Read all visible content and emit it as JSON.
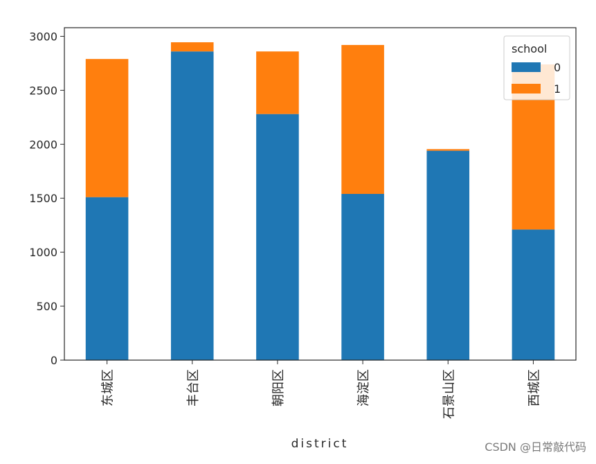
{
  "colors": {
    "series_0": "#1f77b4",
    "series_1": "#ff7f0e",
    "axis": "#262626",
    "background": "#ffffff",
    "watermark": "#7a7a7a"
  },
  "watermark": {
    "text": "CSDN @日常敲代码"
  },
  "chart_data": {
    "type": "bar",
    "stacked": true,
    "xlabel": "district",
    "ylabel": "",
    "categories": [
      "东城区",
      "丰台区",
      "朝阳区",
      "海淀区",
      "石景山区",
      "西城区"
    ],
    "series": [
      {
        "name": "0",
        "values": [
          1510,
          2860,
          2280,
          1540,
          1940,
          1210
        ]
      },
      {
        "name": "1",
        "values": [
          1280,
          85,
          580,
          1380,
          15,
          1530
        ]
      }
    ],
    "ylim": [
      0,
      3080
    ],
    "yticks": [
      0,
      500,
      1000,
      1500,
      2000,
      2500,
      3000
    ],
    "grid": false,
    "legend": {
      "title": "school",
      "placement": "top-right"
    }
  }
}
